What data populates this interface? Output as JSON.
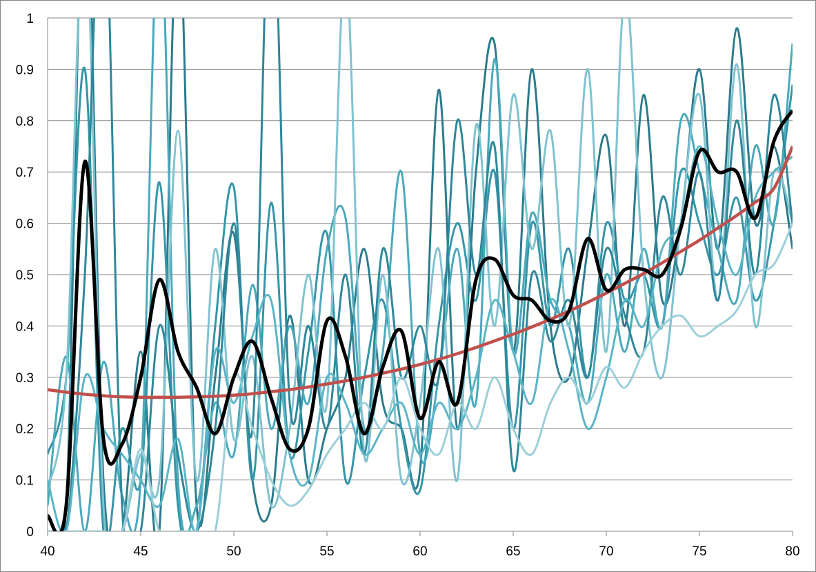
{
  "chart_data": {
    "type": "line",
    "title": "",
    "xlabel": "",
    "ylabel": "",
    "xlim": [
      40,
      80
    ],
    "ylim": [
      0,
      1
    ],
    "grid": "horizontal",
    "x_ticks": [
      "40",
      "45",
      "50",
      "55",
      "60",
      "65",
      "70",
      "75",
      "80"
    ],
    "y_ticks": [
      "0",
      "0.1",
      "0.2",
      "0.3",
      "0.4",
      "0.5",
      "0.6",
      "0.7",
      "0.8",
      "0.9",
      "1"
    ],
    "x": [
      40,
      41,
      42,
      43,
      44,
      45,
      46,
      47,
      48,
      49,
      50,
      51,
      52,
      53,
      54,
      55,
      56,
      57,
      58,
      59,
      60,
      61,
      62,
      63,
      64,
      65,
      66,
      67,
      68,
      69,
      70,
      71,
      72,
      73,
      74,
      75,
      76,
      77,
      78,
      79,
      80
    ],
    "background_series": [
      {
        "color": "#2a7b8c",
        "values": [
          0.0,
          0.05,
          1.3,
          0.1,
          0.0,
          0.35,
          0.0,
          1.2,
          0.05,
          0.3,
          0.58,
          0.1,
          0.05,
          0.42,
          0.1,
          0.2,
          0.3,
          0.55,
          0.25,
          0.2,
          0.12,
          0.86,
          0.2,
          0.7,
          0.95,
          0.35,
          0.9,
          0.4,
          0.3,
          0.55,
          0.77,
          0.4,
          0.85,
          0.45,
          0.6,
          0.9,
          0.55,
          0.98,
          0.6,
          0.75,
          0.55
        ]
      },
      {
        "color": "#3595a8",
        "values": [
          0.15,
          0.3,
          0.9,
          0.0,
          0.2,
          0.1,
          0.68,
          0.05,
          0.0,
          0.4,
          0.67,
          0.1,
          0.64,
          0.15,
          0.35,
          0.58,
          0.1,
          0.3,
          0.45,
          0.2,
          0.08,
          0.4,
          0.6,
          0.45,
          0.7,
          0.2,
          0.6,
          0.4,
          0.55,
          0.3,
          0.6,
          0.45,
          0.5,
          0.4,
          0.7,
          0.6,
          0.5,
          0.65,
          0.45,
          0.6,
          0.87
        ]
      },
      {
        "color": "#4aa9bb",
        "values": [
          0.05,
          0.34,
          0.0,
          0.33,
          0.07,
          0.1,
          1.2,
          0.1,
          0.05,
          0.25,
          0.15,
          0.48,
          0.2,
          0.4,
          0.25,
          0.55,
          0.61,
          0.2,
          0.35,
          0.7,
          0.15,
          0.3,
          0.55,
          0.25,
          0.92,
          0.35,
          0.62,
          0.45,
          0.4,
          0.25,
          0.5,
          0.35,
          0.55,
          0.4,
          0.8,
          0.7,
          0.55,
          0.45,
          0.75,
          0.6,
          0.95
        ]
      },
      {
        "color": "#80c3d0",
        "values": [
          0.08,
          0.3,
          1.2,
          0.05,
          0.0,
          0.15,
          0.1,
          0.78,
          0.1,
          0.55,
          0.18,
          0.34,
          0.05,
          0.2,
          0.5,
          0.25,
          1.1,
          0.15,
          0.5,
          0.1,
          0.25,
          0.55,
          0.1,
          0.79,
          0.4,
          0.85,
          0.55,
          0.78,
          0.4,
          0.9,
          0.35,
          1.05,
          0.5,
          0.3,
          0.6,
          0.85,
          0.45,
          0.91,
          0.4,
          0.7,
          0.6
        ]
      },
      {
        "color": "#2f8799",
        "values": [
          0.0,
          0.0,
          0.5,
          1.3,
          0.05,
          0.0,
          0.4,
          0.15,
          0.0,
          0.2,
          0.6,
          0.2,
          1.3,
          0.25,
          0.4,
          0.2,
          0.5,
          0.15,
          0.55,
          0.3,
          0.4,
          0.3,
          0.8,
          0.5,
          0.75,
          0.12,
          0.5,
          0.37,
          0.45,
          0.3,
          0.55,
          0.42,
          0.35,
          0.65,
          0.5,
          0.7,
          0.45,
          0.8,
          0.5,
          0.85,
          0.6
        ]
      },
      {
        "color": "#5ab5c6",
        "values": [
          0.1,
          0.0,
          0.3,
          0.2,
          0.15,
          0.1,
          0.05,
          0.18,
          0.0,
          0.35,
          0.25,
          0.38,
          0.45,
          0.15,
          0.1,
          0.3,
          0.25,
          0.15,
          0.2,
          0.25,
          0.15,
          0.25,
          0.2,
          0.3,
          0.45,
          0.35,
          0.25,
          0.45,
          0.35,
          0.2,
          0.3,
          0.45,
          0.4,
          0.55,
          0.6,
          0.75,
          0.6,
          0.5,
          0.65,
          0.7,
          0.73
        ]
      },
      {
        "color": "#9ccfd9",
        "values": [
          0.0,
          0.0,
          0.0,
          0.0,
          0.0,
          0.16,
          0.0,
          0.0,
          0.0,
          0.0,
          0.3,
          0.2,
          0.1,
          0.05,
          0.08,
          0.15,
          0.2,
          0.25,
          0.2,
          0.3,
          0.2,
          0.15,
          0.25,
          0.2,
          0.3,
          0.2,
          0.15,
          0.25,
          0.3,
          0.25,
          0.32,
          0.28,
          0.35,
          0.4,
          0.42,
          0.38,
          0.4,
          0.43,
          0.5,
          0.52,
          0.6
        ]
      }
    ],
    "average_series": {
      "color": "#000000",
      "values": [
        0.03,
        0.05,
        0.72,
        0.18,
        0.17,
        0.3,
        0.49,
        0.35,
        0.28,
        0.19,
        0.3,
        0.37,
        0.26,
        0.16,
        0.2,
        0.41,
        0.34,
        0.19,
        0.32,
        0.39,
        0.22,
        0.33,
        0.25,
        0.49,
        0.53,
        0.46,
        0.45,
        0.41,
        0.43,
        0.57,
        0.47,
        0.51,
        0.51,
        0.5,
        0.59,
        0.74,
        0.7,
        0.7,
        0.61,
        0.76,
        0.82
      ]
    },
    "trend_series": {
      "color": "#c0504d",
      "values": [
        0.276,
        0.271,
        0.267,
        0.264,
        0.262,
        0.261,
        0.261,
        0.261,
        0.262,
        0.263,
        0.265,
        0.268,
        0.272,
        0.276,
        0.281,
        0.287,
        0.293,
        0.3,
        0.308,
        0.316,
        0.325,
        0.335,
        0.346,
        0.358,
        0.371,
        0.384,
        0.398,
        0.413,
        0.429,
        0.446,
        0.464,
        0.483,
        0.502,
        0.523,
        0.545,
        0.567,
        0.591,
        0.615,
        0.641,
        0.668,
        0.75
      ]
    }
  }
}
